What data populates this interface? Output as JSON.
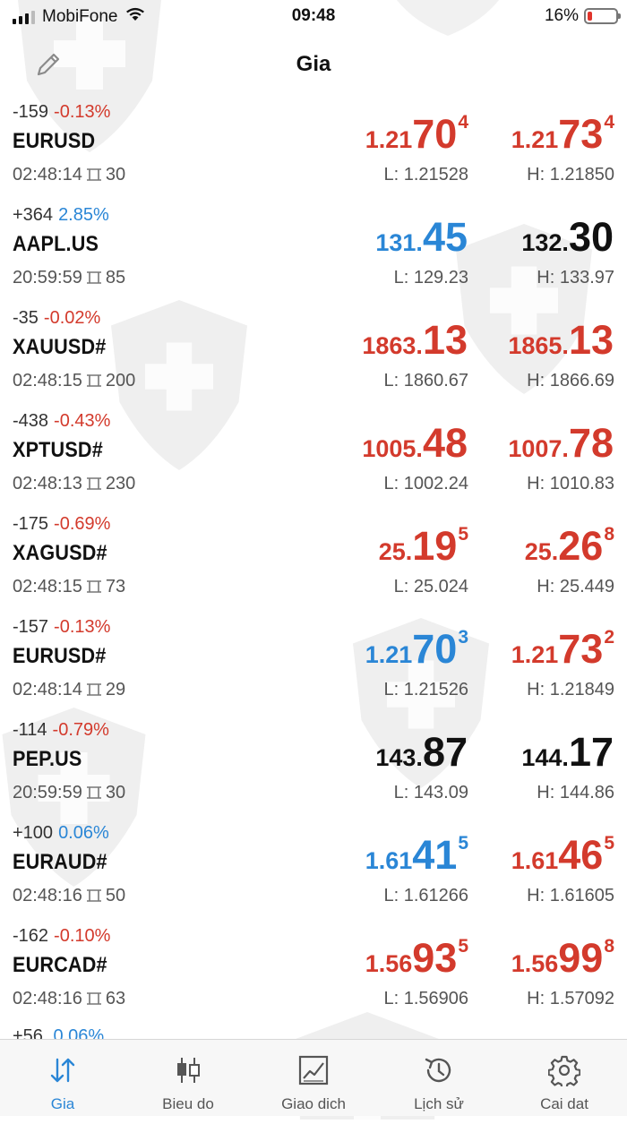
{
  "status_bar": {
    "carrier": "MobiFone",
    "time": "09:48",
    "battery": "16%",
    "battery_level": 0.16
  },
  "header": {
    "title": "Gia",
    "edit_icon": "pencil-icon"
  },
  "quotes": [
    {
      "change_points": "-159",
      "change_percent": "-0.13%",
      "direction": "neg",
      "symbol": "EURUSD",
      "time": "02:48:14",
      "spread": "30",
      "bid": {
        "pre": "1.21",
        "big": "70",
        "sup": "4",
        "color": "red"
      },
      "ask": {
        "pre": "1.21",
        "big": "73",
        "sup": "4",
        "color": "red"
      },
      "low": "L: 1.21528",
      "high": "H: 1.21850"
    },
    {
      "change_points": "+364",
      "change_percent": "2.85%",
      "direction": "pos",
      "symbol": "AAPL.US",
      "time": "20:59:59",
      "spread": "85",
      "bid": {
        "pre": "131.",
        "big": "45",
        "sup": "",
        "color": "blue"
      },
      "ask": {
        "pre": "132.",
        "big": "30",
        "sup": "",
        "color": "black"
      },
      "low": "L: 129.23",
      "high": "H: 133.97"
    },
    {
      "change_points": "-35",
      "change_percent": "-0.02%",
      "direction": "neg",
      "symbol": "XAUUSD#",
      "time": "02:48:15",
      "spread": "200",
      "bid": {
        "pre": "1863.",
        "big": "13",
        "sup": "",
        "color": "red"
      },
      "ask": {
        "pre": "1865.",
        "big": "13",
        "sup": "",
        "color": "red"
      },
      "low": "L: 1860.67",
      "high": "H: 1866.69"
    },
    {
      "change_points": "-438",
      "change_percent": "-0.43%",
      "direction": "neg",
      "symbol": "XPTUSD#",
      "time": "02:48:13",
      "spread": "230",
      "bid": {
        "pre": "1005.",
        "big": "48",
        "sup": "",
        "color": "red"
      },
      "ask": {
        "pre": "1007.",
        "big": "78",
        "sup": "",
        "color": "red"
      },
      "low": "L: 1002.24",
      "high": "H: 1010.83"
    },
    {
      "change_points": "-175",
      "change_percent": "-0.69%",
      "direction": "neg",
      "symbol": "XAGUSD#",
      "time": "02:48:15",
      "spread": "73",
      "bid": {
        "pre": "25.",
        "big": "19",
        "sup": "5",
        "color": "red"
      },
      "ask": {
        "pre": "25.",
        "big": "26",
        "sup": "8",
        "color": "red"
      },
      "low": "L: 25.024",
      "high": "H: 25.449"
    },
    {
      "change_points": "-157",
      "change_percent": "-0.13%",
      "direction": "neg",
      "symbol": "EURUSD#",
      "time": "02:48:14",
      "spread": "29",
      "bid": {
        "pre": "1.21",
        "big": "70",
        "sup": "3",
        "color": "blue"
      },
      "ask": {
        "pre": "1.21",
        "big": "73",
        "sup": "2",
        "color": "red"
      },
      "low": "L: 1.21526",
      "high": "H: 1.21849"
    },
    {
      "change_points": "-114",
      "change_percent": "-0.79%",
      "direction": "neg",
      "symbol": "PEP.US",
      "time": "20:59:59",
      "spread": "30",
      "bid": {
        "pre": "143.",
        "big": "87",
        "sup": "",
        "color": "black"
      },
      "ask": {
        "pre": "144.",
        "big": "17",
        "sup": "",
        "color": "black"
      },
      "low": "L: 143.09",
      "high": "H: 144.86"
    },
    {
      "change_points": "+100",
      "change_percent": "0.06%",
      "direction": "pos",
      "symbol": "EURAUD#",
      "time": "02:48:16",
      "spread": "50",
      "bid": {
        "pre": "1.61",
        "big": "41",
        "sup": "5",
        "color": "blue"
      },
      "ask": {
        "pre": "1.61",
        "big": "46",
        "sup": "5",
        "color": "red"
      },
      "low": "L: 1.61266",
      "high": "H: 1.61605"
    },
    {
      "change_points": "-162",
      "change_percent": "-0.10%",
      "direction": "neg",
      "symbol": "EURCAD#",
      "time": "02:48:16",
      "spread": "63",
      "bid": {
        "pre": "1.56",
        "big": "93",
        "sup": "5",
        "color": "red"
      },
      "ask": {
        "pre": "1.56",
        "big": "99",
        "sup": "8",
        "color": "red"
      },
      "low": "L: 1.56906",
      "high": "H: 1.57092"
    }
  ],
  "partial_row": {
    "change_points": "+56",
    "change_percent": "0.06%"
  },
  "tabs": [
    {
      "label": "Gia",
      "icon": "quotes-arrows-icon",
      "active": true
    },
    {
      "label": "Bieu do",
      "icon": "candlestick-chart-icon",
      "active": false
    },
    {
      "label": "Giao dich",
      "icon": "trade-chart-icon",
      "active": false
    },
    {
      "label": "Lịch sử",
      "icon": "history-clock-icon",
      "active": false
    },
    {
      "label": "Cai dat",
      "icon": "settings-gear-icon",
      "active": false
    }
  ],
  "colors": {
    "red": "#d33a2c",
    "blue": "#2a86d6",
    "black": "#111111",
    "tab_active": "#2a86d6"
  }
}
